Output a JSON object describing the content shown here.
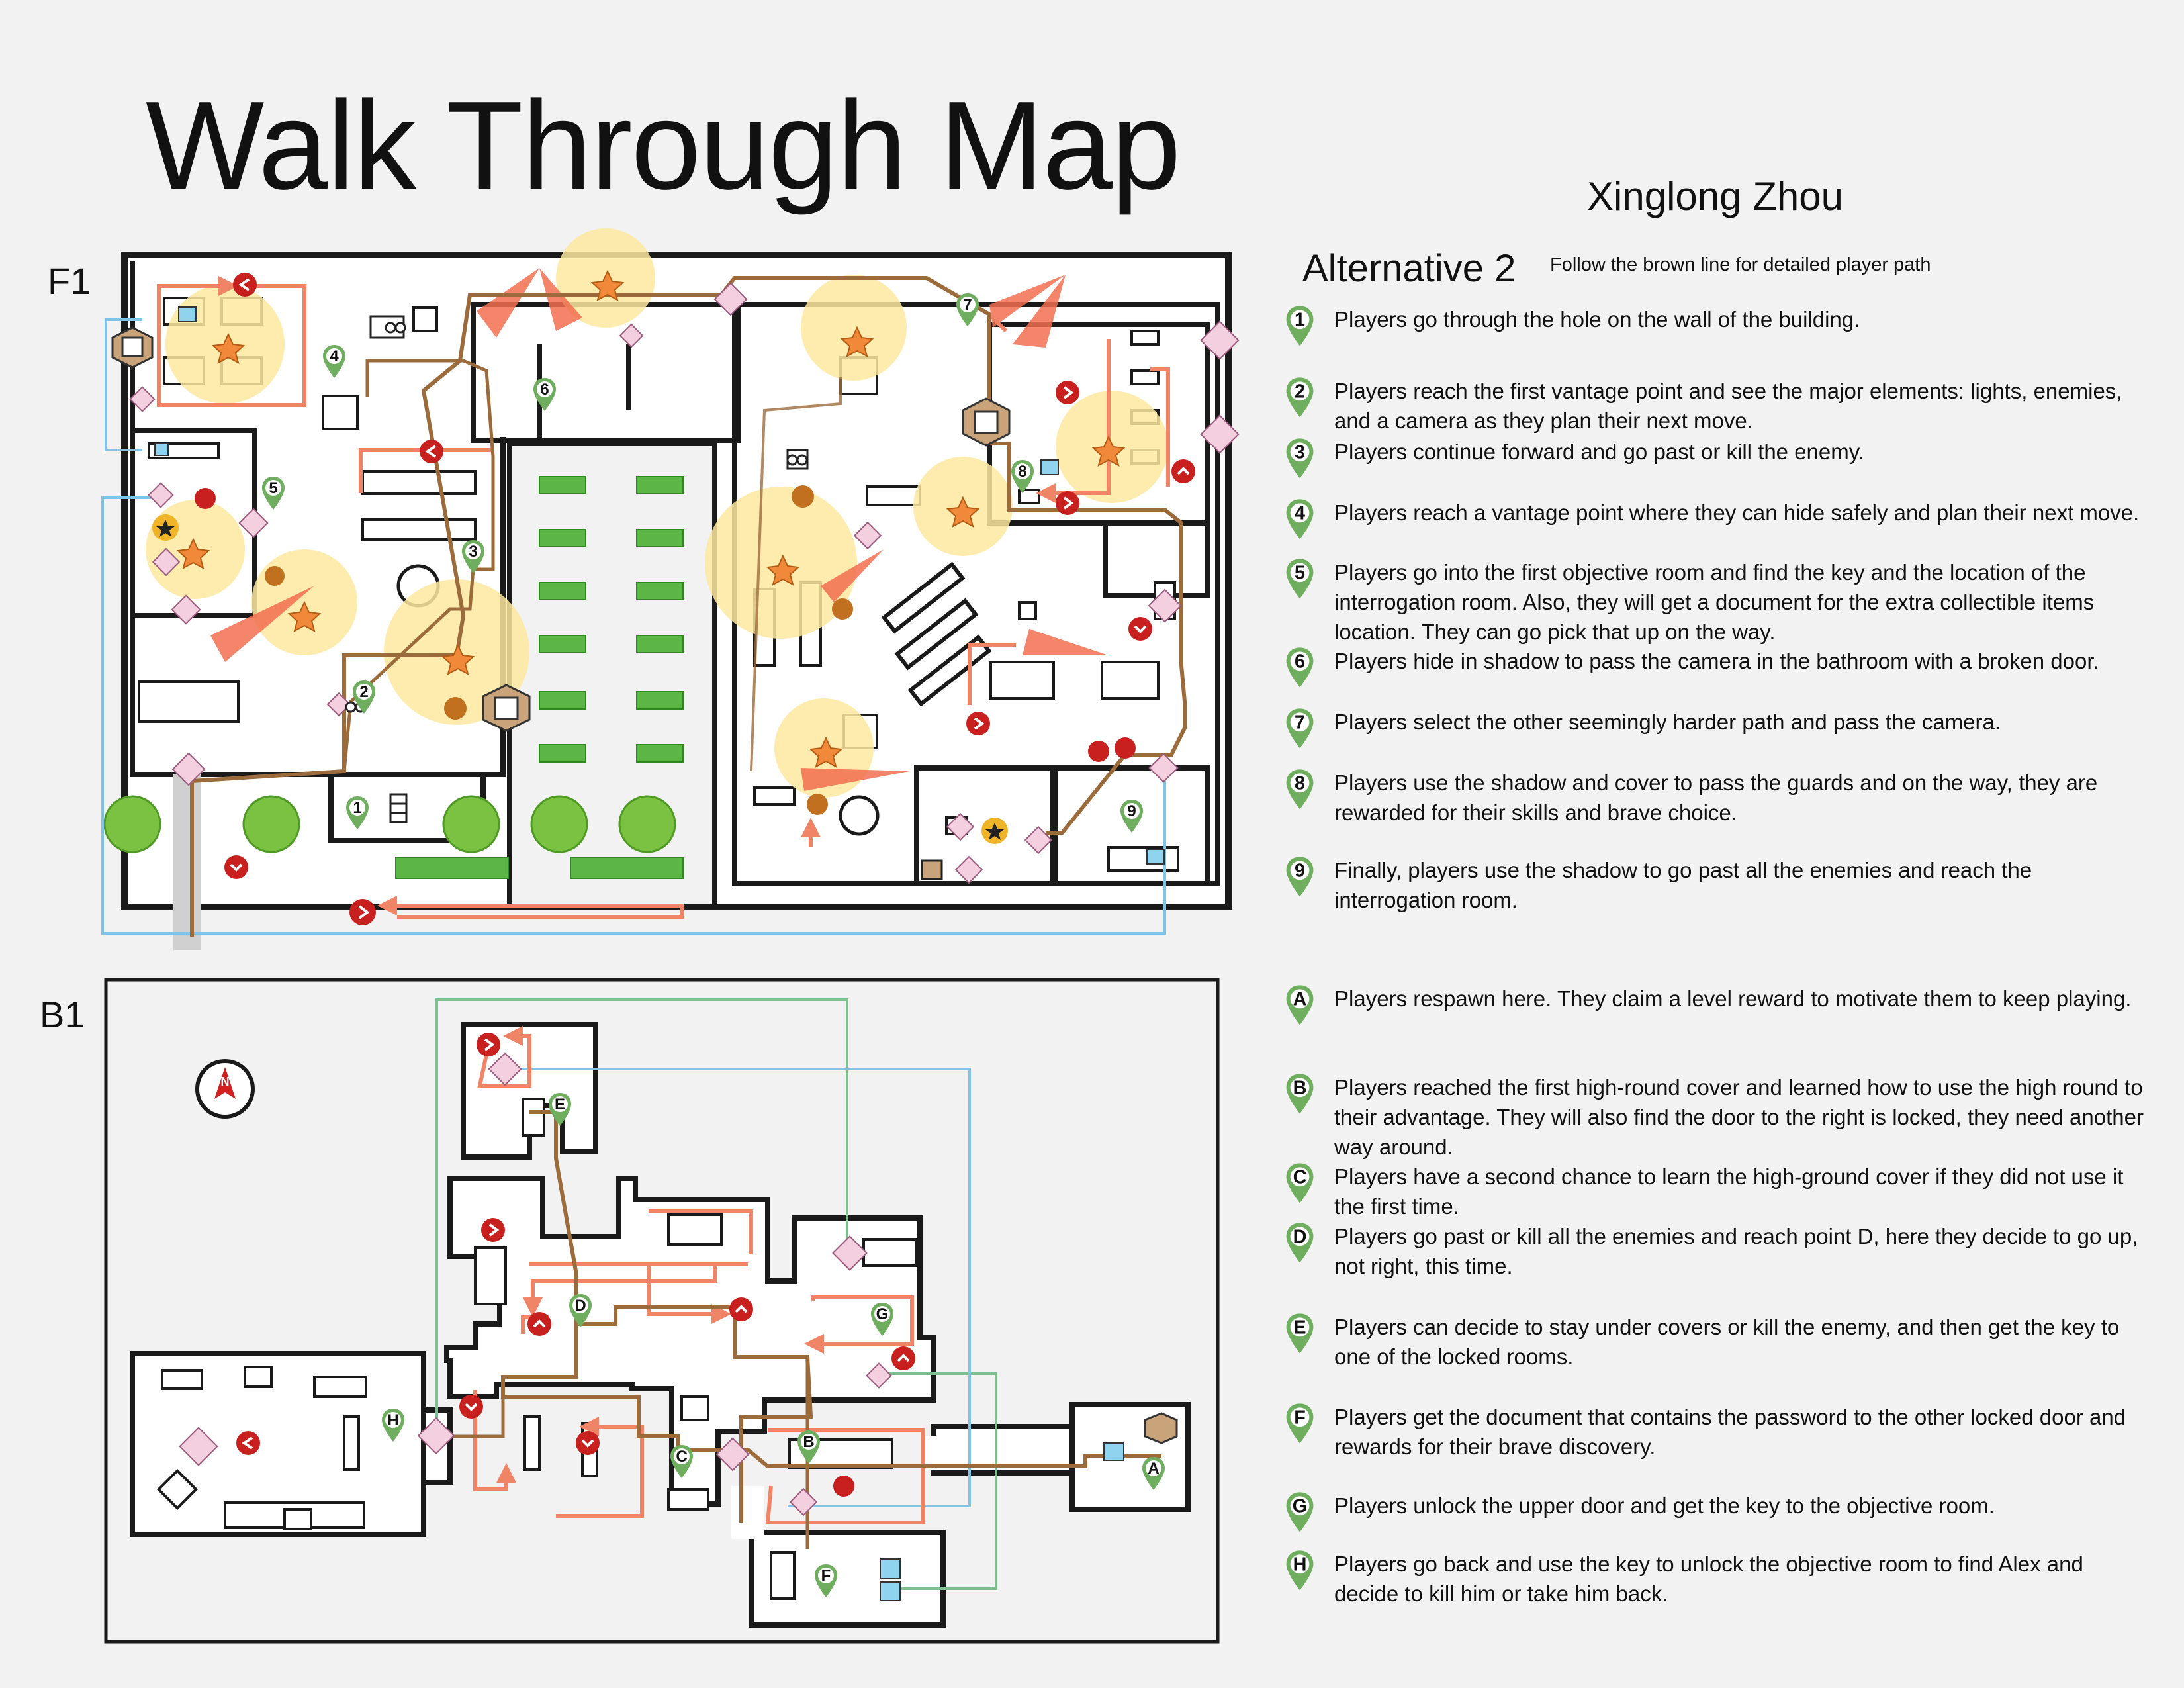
{
  "title": "Walk Through Map",
  "author": "Xinglong Zhou",
  "floors": {
    "f1": "F1",
    "b1": "B1"
  },
  "legend": {
    "heading": "Alternative 2",
    "note": "Follow the brown line for detailed player path"
  },
  "steps_f1": [
    {
      "marker": "1",
      "text": "Players go through the hole on the wall of the building."
    },
    {
      "marker": "2",
      "text": "Players reach the first vantage point and see the major elements: lights, enemies, and a camera as they plan their next move."
    },
    {
      "marker": "3",
      "text": "Players continue forward and go past or kill the enemy."
    },
    {
      "marker": "4",
      "text": "Players reach a vantage point where they can hide safely and plan their next move."
    },
    {
      "marker": "5",
      "text": "Players go into the first objective room and find the key and the location of the interrogation room. Also, they will get a document for the extra collectible items location. They can go pick that up on the way."
    },
    {
      "marker": "6",
      "text": "Players hide in shadow to pass the camera in the bathroom with a broken door."
    },
    {
      "marker": "7",
      "text": "Players select the other seemingly harder path and pass the camera."
    },
    {
      "marker": "8",
      "text": "Players use the shadow and cover to pass the guards and on the way, they are rewarded for their skills and brave choice."
    },
    {
      "marker": "9",
      "text": "Finally, players use the shadow to go past all the enemies and reach the interrogation room."
    }
  ],
  "steps_b1": [
    {
      "marker": "A",
      "text": "Players respawn here. They claim a level reward to motivate them to keep playing."
    },
    {
      "marker": "B",
      "text": "Players reached the first high-round cover and learned how to use the high round to their advantage. They will also find the door to the right is locked, they need another way around."
    },
    {
      "marker": "C",
      "text": "Players have a second chance to learn the high-ground cover if they did not use it the first time."
    },
    {
      "marker": "D",
      "text": "Players go past or kill all the enemies and reach point D, here they decide to go up, not right, this time."
    },
    {
      "marker": "E",
      "text": "Players can decide to stay under covers or kill the enemy, and then get the key to one of the locked rooms."
    },
    {
      "marker": "F",
      "text": "Players get the document that contains the password to the other locked door and rewards for their brave discovery."
    },
    {
      "marker": "G",
      "text": "Players unlock the upper door and get the key to the objective room."
    },
    {
      "marker": "H",
      "text": "Players go back and use the key to unlock the objective room to find Alex and decide to kill him or take him back."
    }
  ],
  "map_markers_f1": [
    "1",
    "2",
    "3",
    "4",
    "5",
    "6",
    "7",
    "8",
    "9"
  ],
  "map_markers_b1": [
    "A",
    "B",
    "C",
    "D",
    "E",
    "F",
    "G",
    "H"
  ],
  "compass_letter": "N",
  "colors": {
    "background": "#f2f2f2",
    "wall": "#1a1a1a",
    "player_path": "#9c6b3c",
    "enemy_path": "#f08466",
    "alt_path_blue": "#7fc3e6",
    "alt_path_green": "#7fbf8f",
    "light": "#fde9a0",
    "vision_cone": "#f26f50",
    "marker_green": "#6fae5f",
    "enemy_red": "#c81f1f",
    "foliage": "#7cc242",
    "cover_green": "#5cb646",
    "icon_pink": "#f4cfe0"
  },
  "icon_names": [
    "enemy-icon",
    "camera-icon",
    "light-icon",
    "locked-door-icon",
    "door-icon",
    "key-icon",
    "document-icon",
    "star-reward-icon",
    "gem-reward-icon",
    "ladder-icon",
    "vent-icon",
    "binoculars-icon",
    "cover-icon",
    "compass-icon",
    "respawn-flag-icon",
    "stairs-icon"
  ]
}
